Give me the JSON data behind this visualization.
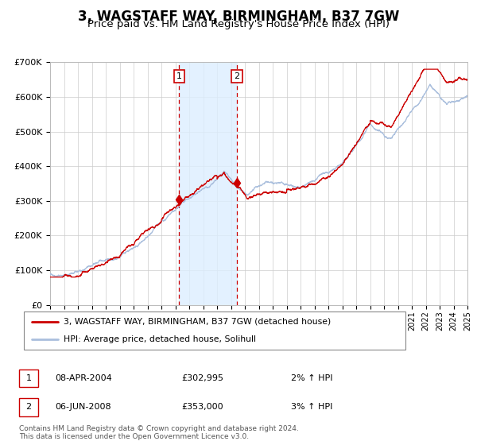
{
  "title": "3, WAGSTAFF WAY, BIRMINGHAM, B37 7GW",
  "subtitle": "Price paid vs. HM Land Registry's House Price Index (HPI)",
  "title_fontsize": 12,
  "subtitle_fontsize": 9.5,
  "legend_line1": "3, WAGSTAFF WAY, BIRMINGHAM, B37 7GW (detached house)",
  "legend_line2": "HPI: Average price, detached house, Solihull",
  "sale1_date": "08-APR-2004",
  "sale1_price": "£302,995",
  "sale1_hpi": "2% ↑ HPI",
  "sale2_date": "06-JUN-2008",
  "sale2_price": "£353,000",
  "sale2_hpi": "3% ↑ HPI",
  "footer": "Contains HM Land Registry data © Crown copyright and database right 2024.\nThis data is licensed under the Open Government Licence v3.0.",
  "hpi_color": "#aabfdd",
  "price_color": "#cc0000",
  "sale_marker_color": "#cc0000",
  "background_color": "#ffffff",
  "grid_color": "#cccccc",
  "shading_color": "#ddeeff",
  "dashed_line_color": "#cc0000",
  "ylim": [
    0,
    700000
  ],
  "yticks": [
    0,
    100000,
    200000,
    300000,
    400000,
    500000,
    600000,
    700000
  ],
  "ytick_labels": [
    "£0",
    "£100K",
    "£200K",
    "£300K",
    "£400K",
    "£500K",
    "£600K",
    "£700K"
  ],
  "start_year": 1995,
  "end_year": 2025,
  "sale1_year": 2004.27,
  "sale2_year": 2008.43,
  "sale1_value": 302995,
  "sale2_value": 353000
}
